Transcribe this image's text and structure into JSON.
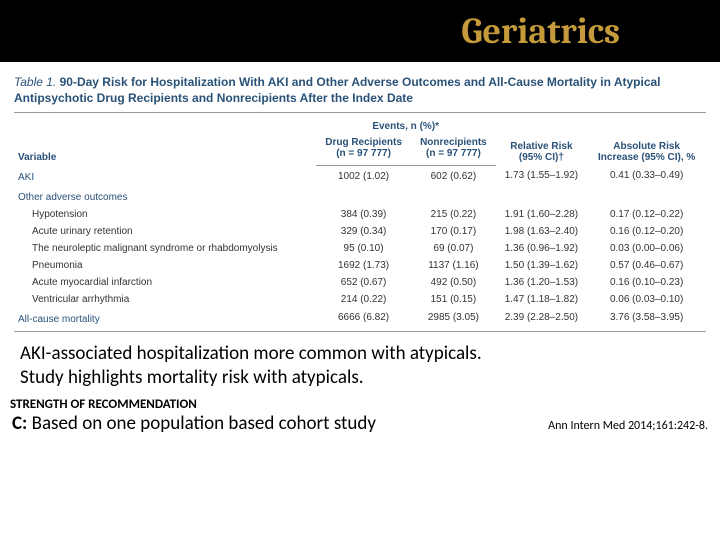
{
  "header": {
    "title": "Geriatrics"
  },
  "table": {
    "caption_label": "Table 1.",
    "caption_title": "90-Day Risk for Hospitalization With AKI and Other Adverse Outcomes and All-Cause Mortality in Atypical Antipsychotic Drug Recipients and Nonrecipients After the Index Date",
    "col_variable": "Variable",
    "col_events_group": "Events, n (%)*",
    "col_drug": "Drug Recipients",
    "col_drug_n": "(n = 97 777)",
    "col_non": "Nonrecipients",
    "col_non_n": "(n = 97 777)",
    "col_rr": "Relative Risk",
    "col_rr_ci": "(95% CI)†",
    "col_ari": "Absolute Risk",
    "col_ari_sub": "Increase (95% CI), %",
    "rows": [
      {
        "label": "AKI",
        "section": true,
        "drug": "1002 (1.02)",
        "non": "602 (0.62)",
        "rr": "1.73 (1.55–1.92)",
        "ari": "0.41 (0.33–0.49)"
      },
      {
        "label": "Other adverse outcomes",
        "section": true,
        "drug": "",
        "non": "",
        "rr": "",
        "ari": ""
      },
      {
        "label": "Hypotension",
        "indent": true,
        "drug": "384 (0.39)",
        "non": "215 (0.22)",
        "rr": "1.91 (1.60–2.28)",
        "ari": "0.17 (0.12–0.22)"
      },
      {
        "label": "Acute urinary retention",
        "indent": true,
        "drug": "329 (0.34)",
        "non": "170 (0.17)",
        "rr": "1.98 (1.63–2.40)",
        "ari": "0.16 (0.12–0.20)"
      },
      {
        "label": "The neuroleptic malignant syndrome or rhabdomyolysis",
        "indent": true,
        "drug": "95 (0.10)",
        "non": "69 (0.07)",
        "rr": "1.36 (0.96–1.92)",
        "ari": "0.03 (0.00–0.06)"
      },
      {
        "label": "Pneumonia",
        "indent": true,
        "drug": "1692 (1.73)",
        "non": "1137 (1.16)",
        "rr": "1.50 (1.39–1.62)",
        "ari": "0.57 (0.46–0.67)"
      },
      {
        "label": "Acute myocardial infarction",
        "indent": true,
        "drug": "652 (0.67)",
        "non": "492 (0.50)",
        "rr": "1.36 (1.20–1.53)",
        "ari": "0.16 (0.10–0.23)"
      },
      {
        "label": "Ventricular arrhythmia",
        "indent": true,
        "drug": "214 (0.22)",
        "non": "151 (0.15)",
        "rr": "1.47 (1.18–1.82)",
        "ari": "0.06 (0.03–0.10)"
      },
      {
        "label": "All-cause mortality",
        "section": true,
        "drug": "6666 (6.82)",
        "non": "2985 (3.05)",
        "rr": "2.39 (2.28–2.50)",
        "ari": "3.76 (3.58–3.95)"
      }
    ]
  },
  "finding": {
    "line1": "AKI-associated hospitalization more common with atypicals.",
    "line2": "Study highlights mortality risk with atypicals."
  },
  "sor": {
    "label": "STRENGTH OF RECOMMENDATION",
    "grade": "C:",
    "text": "Based on one population based cohort study"
  },
  "citation": "Ann Intern Med 2014;161:242-8.",
  "style": {
    "header_bg": "#000000",
    "header_color": "#c59a3a",
    "table_header_color": "#2a5278",
    "border_color": "#999999",
    "body_text": "#333333"
  }
}
